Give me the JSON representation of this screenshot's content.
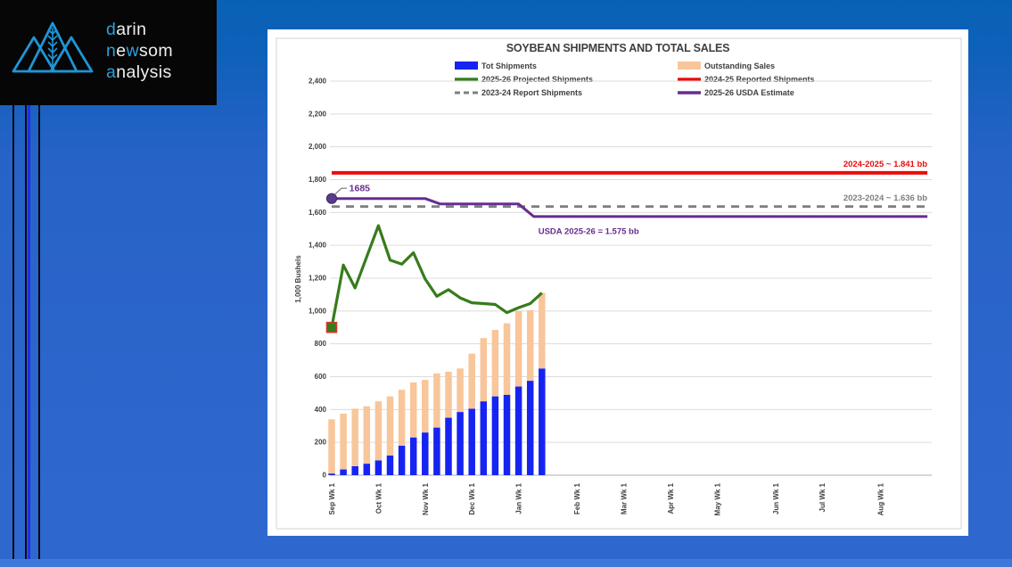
{
  "page": {
    "header_blue": "#0a61b6",
    "background_blue": "#2d66cc",
    "bottom_band_blue": "#3f78db",
    "accent_stripe_blue": "#1b2fe8"
  },
  "logo": {
    "d": "d",
    "arin": "arin",
    "n": "n",
    "e": "e",
    "w": "w",
    "som": "som",
    "a": "a",
    "nalysis": "nalysis",
    "icon_blue": "#1e95d6",
    "highlight_blue": "#2aa0dc"
  },
  "chart_data": {
    "type": "combo",
    "title": "SOYBEAN SHIPMENTS AND TOTAL SALES",
    "ylabel": "1,000 Bushels",
    "ylim": [
      0,
      2400
    ],
    "ytick_step": 200,
    "yticks": [
      "0",
      "200",
      "400",
      "600",
      "800",
      "1,000",
      "1,200",
      "1,400",
      "1,600",
      "1,800",
      "2,000",
      "2,200",
      "2,400"
    ],
    "grid": "horizontal",
    "x_axis": {
      "weeks_total": 52,
      "month_labels": [
        {
          "label": "Sep Wk 1",
          "week": 0
        },
        {
          "label": "Oct Wk 1",
          "week": 4
        },
        {
          "label": "Nov Wk 1",
          "week": 8
        },
        {
          "label": "Dec Wk 1",
          "week": 12
        },
        {
          "label": "Jan Wk 1",
          "week": 16
        },
        {
          "label": "Feb Wk 1",
          "week": 21
        },
        {
          "label": "Mar Wk 1",
          "week": 25
        },
        {
          "label": "Apr Wk 1",
          "week": 29
        },
        {
          "label": "May Wk 1",
          "week": 33
        },
        {
          "label": "Jun Wk 1",
          "week": 38
        },
        {
          "label": "Jul Wk 1",
          "week": 42
        },
        {
          "label": "Aug Wk 1",
          "week": 47
        }
      ]
    },
    "bars": {
      "stacked": true,
      "series": [
        {
          "name": "Tot Shipments",
          "color": "#1624f2",
          "values": [
            10,
            35,
            55,
            70,
            90,
            120,
            180,
            230,
            260,
            290,
            350,
            385,
            405,
            450,
            480,
            490,
            540,
            575,
            650
          ]
        },
        {
          "name": "Outstanding Sales",
          "color": "#f8c69a",
          "values": [
            330,
            340,
            350,
            350,
            360,
            360,
            340,
            335,
            320,
            330,
            280,
            265,
            335,
            385,
            405,
            435,
            460,
            430,
            460
          ]
        }
      ]
    },
    "lines": [
      {
        "name": "2025-26 Projected Shipments",
        "slug": "projected-shipments",
        "color": "#367c1c",
        "width": 3.2,
        "points": [
          [
            0,
            900
          ],
          [
            1,
            1280
          ],
          [
            2,
            1140
          ],
          [
            3,
            1330
          ],
          [
            4,
            1520
          ],
          [
            5,
            1310
          ],
          [
            6,
            1285
          ],
          [
            7,
            1355
          ],
          [
            8,
            1195
          ],
          [
            9,
            1090
          ],
          [
            10,
            1130
          ],
          [
            11,
            1080
          ],
          [
            12,
            1050
          ],
          [
            13,
            1045
          ],
          [
            14,
            1040
          ],
          [
            15,
            990
          ],
          [
            16,
            1020
          ],
          [
            17,
            1045
          ],
          [
            18,
            1110
          ]
        ],
        "marker": {
          "shape": "square",
          "fill": "#367c1c",
          "stroke": "#d03b2f"
        }
      },
      {
        "name": "2024-25 Reported Shipments",
        "slug": "reported-shipments-2024-25",
        "color": "#e90d0c",
        "width": 4,
        "points": [
          [
            0,
            1841
          ],
          [
            51,
            1841
          ]
        ]
      },
      {
        "name": "2023-24 Report Shipments",
        "slug": "report-shipments-2023-24",
        "color": "#7f7f7f",
        "width": 2.8,
        "dash": "9,7",
        "points": [
          [
            0,
            1636
          ],
          [
            51,
            1636
          ]
        ]
      },
      {
        "name": "2025-26 USDA Estimate",
        "slug": "usda-estimate-2025-26",
        "color": "#662d91",
        "width": 3,
        "points": [
          [
            0,
            1685
          ],
          [
            8,
            1685
          ],
          [
            9.3,
            1652
          ],
          [
            16,
            1652
          ],
          [
            17.3,
            1575
          ],
          [
            51,
            1575
          ]
        ],
        "marker": {
          "shape": "circle",
          "fill": "#5a3c8f",
          "stroke": "#41286b"
        }
      }
    ],
    "annotations": [
      {
        "text": "1685",
        "color": "#662d91",
        "week": 1.5,
        "value": 1730,
        "anchor": "start",
        "size": 10.5,
        "leader": [
          [
            0.3,
            1712
          ],
          [
            0.85,
            1748
          ],
          [
            1.3,
            1748
          ]
        ]
      },
      {
        "text": "2024-2025 ~ 1.841 bb",
        "color": "#e90d0c",
        "week": 51,
        "value": 1878,
        "anchor": "end",
        "size": 9.5
      },
      {
        "text": "2023-2024 ~ 1.636 bb",
        "color": "#7f7f7f",
        "week": 51,
        "value": 1672,
        "anchor": "end",
        "size": 9.5
      },
      {
        "text": "USDA 2025-26 = 1.575 bb",
        "color": "#662d91",
        "week": 22,
        "value": 1468,
        "anchor": "middle",
        "size": 9.5
      }
    ],
    "legend": {
      "position": "top-center",
      "items": [
        {
          "label": "Tot Shipments",
          "swatch": "rect",
          "color": "#1624f2",
          "col": 0,
          "row": 0
        },
        {
          "label": "Outstanding Sales",
          "swatch": "rect",
          "color": "#f8c69a",
          "col": 1,
          "row": 0
        },
        {
          "label": "2025-26 Projected Shipments",
          "swatch": "line",
          "color": "#367c1c",
          "col": 0,
          "row": 1
        },
        {
          "label": "2024-25 Reported Shipments",
          "swatch": "line",
          "color": "#e90d0c",
          "col": 1,
          "row": 1
        },
        {
          "label": "2023-24 Report Shipments",
          "swatch": "dash",
          "color": "#7f7f7f",
          "col": 0,
          "row": 2
        },
        {
          "label": "2025-26 USDA Estimate",
          "swatch": "line",
          "color": "#662d91",
          "col": 1,
          "row": 2
        }
      ]
    }
  }
}
